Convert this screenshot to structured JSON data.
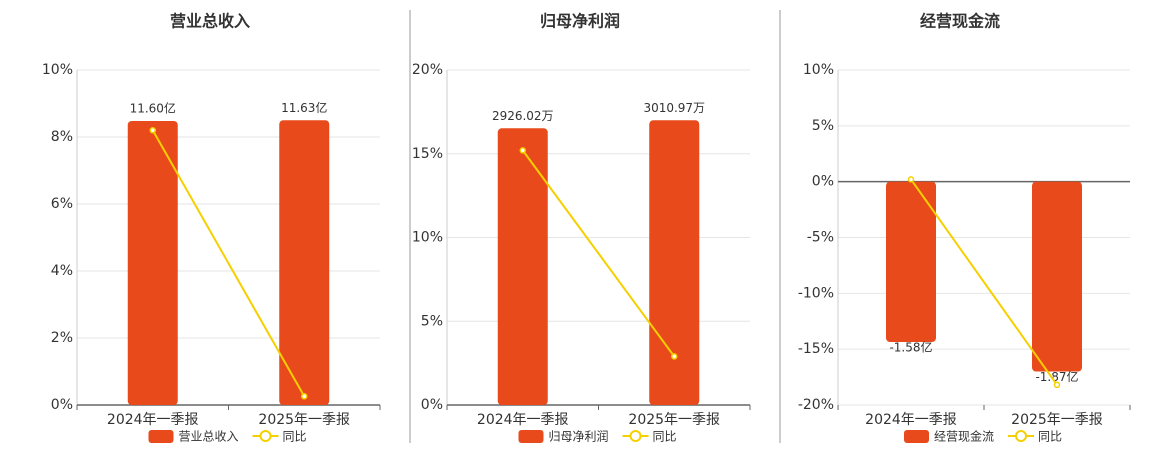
{
  "chart_data": [
    {
      "type": "bar",
      "title": "营业总收入",
      "categories": [
        "2024年一季报",
        "2025年一季报"
      ],
      "series": [
        {
          "name": "营业总收入",
          "color": "#e84a1b",
          "values": [
            11.6,
            11.63
          ],
          "value_labels": [
            "11.60亿",
            "11.63亿"
          ]
        },
        {
          "name": "同比",
          "type": "line",
          "color": "#f5d000",
          "values": [
            8.2,
            0.26
          ]
        }
      ],
      "ylim": [
        0,
        10
      ],
      "yticks": [
        {
          "value": 0,
          "label": "0%"
        },
        {
          "value": 2,
          "label": "2%"
        },
        {
          "value": 4,
          "label": "4%"
        },
        {
          "value": 6,
          "label": "6%"
        },
        {
          "value": 8,
          "label": "8%"
        },
        {
          "value": 10,
          "label": "10%"
        }
      ],
      "grid": true
    },
    {
      "type": "bar",
      "title": "归母净利润",
      "categories": [
        "2024年一季报",
        "2025年一季报"
      ],
      "series": [
        {
          "name": "归母净利润",
          "color": "#e84a1b",
          "values": [
            2926.02,
            3010.97
          ],
          "value_labels": [
            "2926.02万",
            "3010.97万"
          ]
        },
        {
          "name": "同比",
          "type": "line",
          "color": "#f5d000",
          "values": [
            15.2,
            2.9
          ]
        }
      ],
      "ylim": [
        0,
        20
      ],
      "yticks": [
        {
          "value": 0,
          "label": "0%"
        },
        {
          "value": 5,
          "label": "5%"
        },
        {
          "value": 10,
          "label": "10%"
        },
        {
          "value": 15,
          "label": "15%"
        },
        {
          "value": 20,
          "label": "20%"
        }
      ],
      "grid": true
    },
    {
      "type": "bar",
      "title": "经营现金流",
      "categories": [
        "2024年一季报",
        "2025年一季报"
      ],
      "series": [
        {
          "name": "经营现金流",
          "color": "#e84a1b",
          "values": [
            -1.58,
            -1.87
          ],
          "value_labels": [
            "-1.58亿",
            "-1.87亿"
          ]
        },
        {
          "name": "同比",
          "type": "line",
          "color": "#f5d000",
          "values": [
            0.2,
            -18.2
          ]
        }
      ],
      "ylim": [
        -20,
        10
      ],
      "yticks": [
        {
          "value": -20,
          "label": "-20%"
        },
        {
          "value": -15,
          "label": "-15%"
        },
        {
          "value": -10,
          "label": "-10%"
        },
        {
          "value": -5,
          "label": "-5%"
        },
        {
          "value": 0,
          "label": "0%"
        },
        {
          "value": 5,
          "label": "5%"
        },
        {
          "value": 10,
          "label": "10%"
        }
      ],
      "grid": true
    }
  ]
}
